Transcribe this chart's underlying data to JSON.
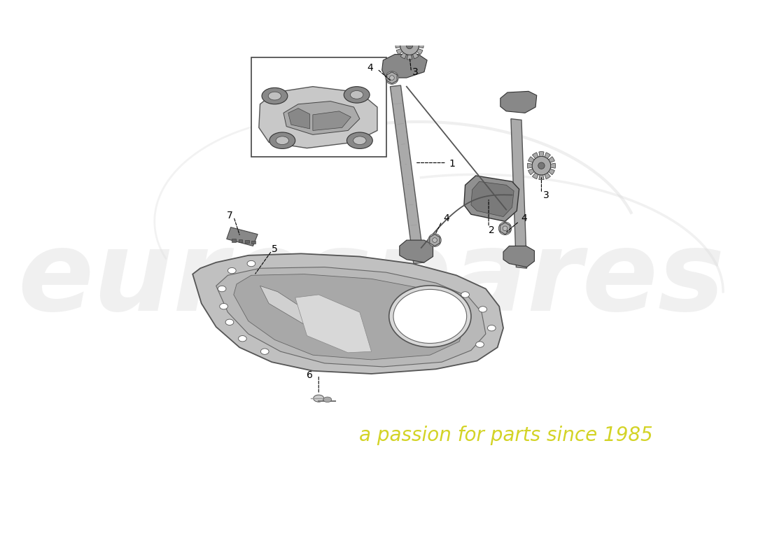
{
  "background_color": "#ffffff",
  "watermark_text1": "eurospares",
  "watermark_text2": "a passion for parts since 1985",
  "watermark_color1": "#cccccc",
  "watermark_color2": "#cccc00",
  "fig_width": 11.0,
  "fig_height": 8.0,
  "dpi": 100,
  "part_color_dark": "#888888",
  "part_color_mid": "#aaaaaa",
  "part_color_light": "#cccccc",
  "part_color_highlight": "#bbbbbb",
  "edge_color": "#555555",
  "edge_color_dark": "#333333",
  "label_fontsize": 10
}
